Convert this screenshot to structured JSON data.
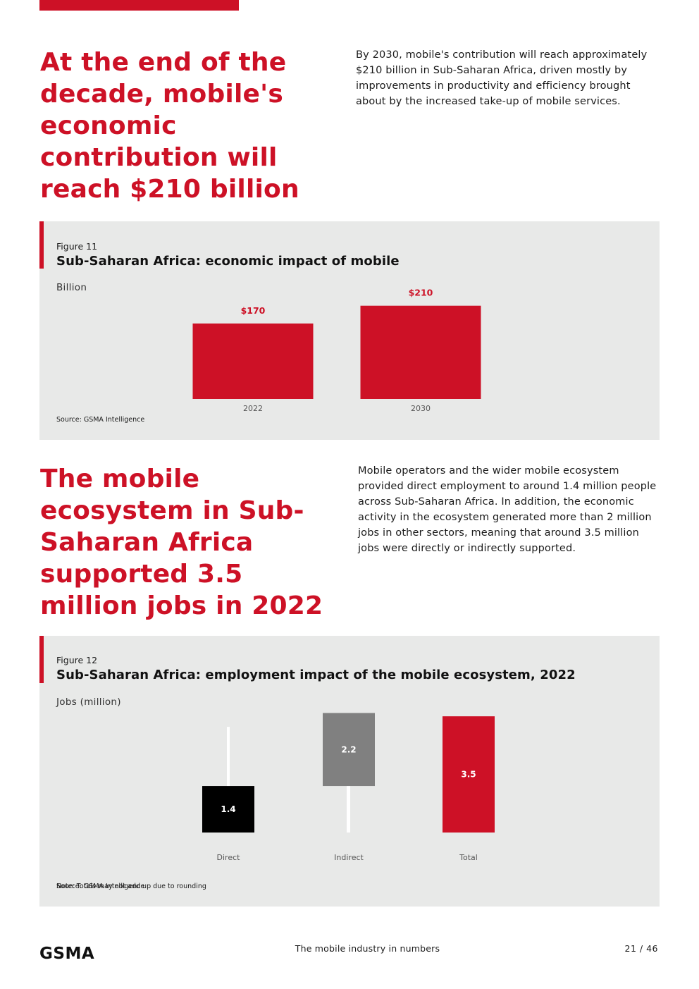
{
  "section1": {
    "headline": "At the end of the decade, mobile's economic contribution will reach $210 billion",
    "intro": "By 2030, mobile's contribution will reach approximately $210 billion in Sub-Saharan Africa, driven mostly by improvements in productivity and efficiency brought about by the increased take-up of mobile services."
  },
  "section2": {
    "headline": "The mobile ecosystem in Sub-Saharan Africa supported 3.5 million jobs in 2022",
    "intro": "Mobile operators and the wider mobile ecosystem provided direct employment to around 1.4 million people across Sub-Saharan Africa. In addition, the economic activity in the ecosystem generated more than 2 million jobs in other sectors, meaning that around 3.5 million jobs were directly or indirectly supported."
  },
  "figure11": {
    "label": "Figure 11",
    "title": "Sub-Saharan Africa: economic impact of mobile",
    "unit": "Billion",
    "source": "Source: GSMA Intelligence"
  },
  "figure12": {
    "label": "Figure 12",
    "title": "Sub-Saharan Africa: employment impact of the mobile ecosystem, 2022",
    "unit": "Jobs (million)",
    "note": "Note: Totals may not add up due to rounding",
    "source": "Source: GSMA Intelligence"
  },
  "footer": {
    "logo": "GSMA",
    "title": "The mobile industry in numbers",
    "page": "21 / 46"
  },
  "colors": {
    "brand_red": "#cd1126",
    "direct": "#000000",
    "indirect": "#808080",
    "total": "#cd1126",
    "panel_bg": "#e8e9e8"
  },
  "chart_data": [
    {
      "type": "bar",
      "categories": [
        "2022",
        "2030"
      ],
      "values": [
        170,
        210
      ],
      "data_labels": [
        "$170",
        "$210"
      ],
      "title": "Sub-Saharan Africa: economic impact of mobile",
      "ylabel": "Billion",
      "color": "#cd1126"
    },
    {
      "type": "bar",
      "subtype": "waterfall",
      "categories": [
        "Direct",
        "Indirect",
        "Total"
      ],
      "values": [
        1.4,
        2.2,
        3.5
      ],
      "data_labels": [
        "1.4",
        "2.2",
        "3.5"
      ],
      "title": "Sub-Saharan Africa: employment impact of the mobile ecosystem, 2022",
      "ylabel": "Jobs (million)",
      "colors": [
        "#000000",
        "#808080",
        "#cd1126"
      ]
    }
  ]
}
